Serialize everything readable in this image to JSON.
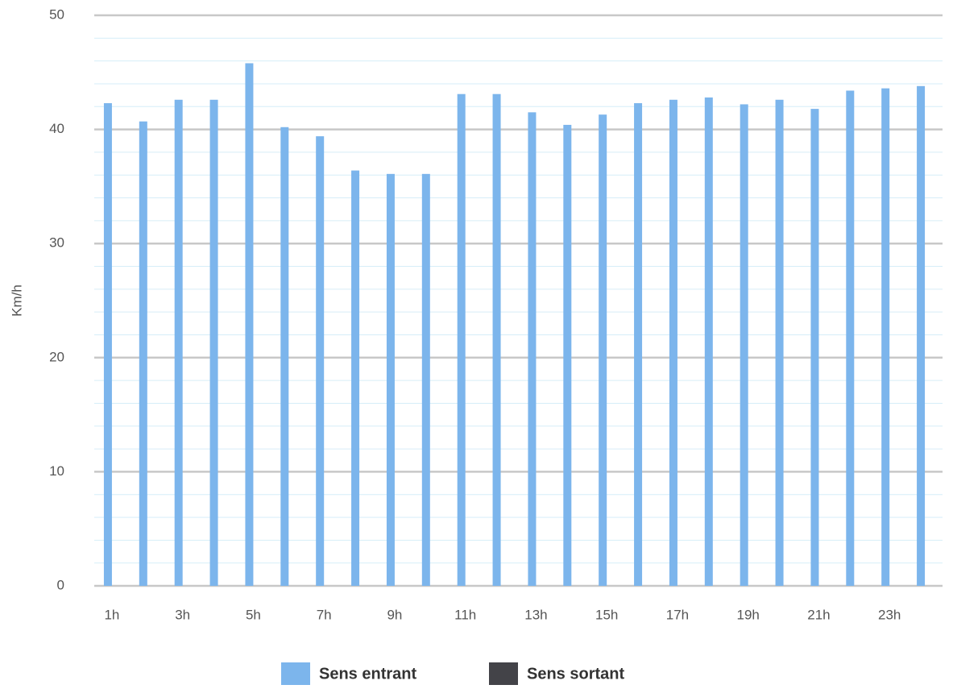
{
  "chart_data": {
    "type": "bar",
    "y_label": "Km/h",
    "categories": [
      "1h",
      null,
      "3h",
      null,
      "5h",
      null,
      "7h",
      null,
      "9h",
      null,
      "11h",
      null,
      "13h",
      null,
      "15h",
      null,
      "17h",
      null,
      "19h",
      null,
      "21h",
      null,
      "23h",
      null
    ],
    "series": [
      {
        "name": "Sens entrant",
        "color": "#7cb5ec",
        "values": [
          42.3,
          40.7,
          42.6,
          42.6,
          45.8,
          40.2,
          39.4,
          36.4,
          36.1,
          36.1,
          43.1,
          43.1,
          41.5,
          40.4,
          41.3,
          42.3,
          42.6,
          42.8,
          42.2,
          42.6,
          41.8,
          43.4,
          43.6,
          43.8
        ]
      },
      {
        "name": "Sens sortant",
        "color": "#434348",
        "values": [
          null,
          null,
          null,
          null,
          null,
          null,
          null,
          null,
          null,
          null,
          null,
          null,
          null,
          null,
          null,
          null,
          null,
          null,
          null,
          null,
          null,
          null,
          null,
          null
        ]
      }
    ],
    "ylim": [
      0,
      50
    ],
    "yticks": [
      0,
      10,
      20,
      30,
      40,
      50
    ],
    "grid": true,
    "legend": "bottom"
  }
}
